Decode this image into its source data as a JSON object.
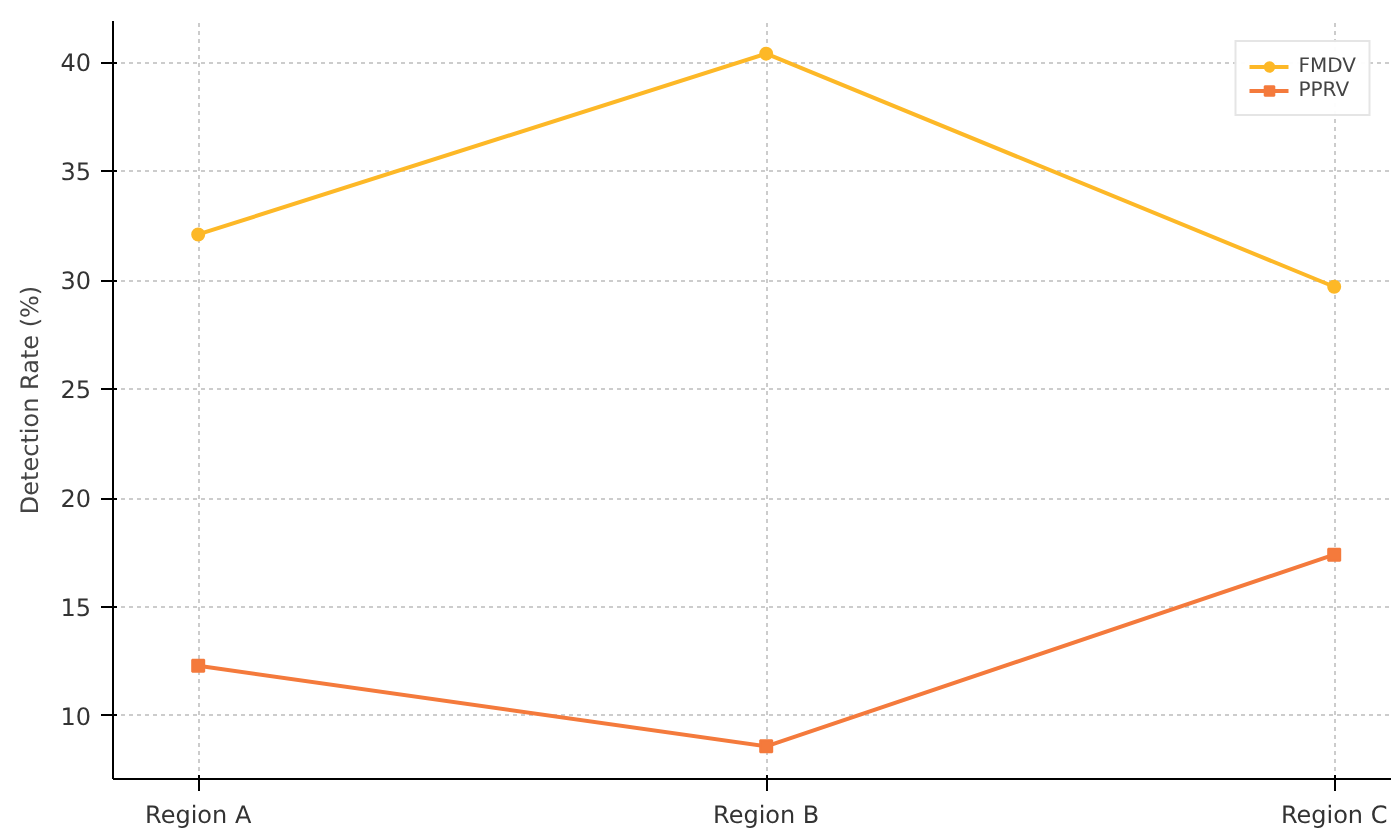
{
  "chart_data": {
    "type": "line",
    "ylabel": "Detection Rate (%)",
    "categories": [
      "Region A",
      "Region B",
      "Region C"
    ],
    "series": [
      {
        "name": "FMDV",
        "color": "#fdb827",
        "values": [
          32.1,
          40.4,
          29.7
        ],
        "marker": "circle"
      },
      {
        "name": "PPRV",
        "color": "#f47a3c",
        "values": [
          12.3,
          8.6,
          17.4
        ],
        "marker": "square"
      }
    ],
    "ylim": [
      7.1,
      41.9
    ],
    "yticks": [
      10,
      15,
      20,
      25,
      30,
      35,
      40
    ],
    "grid": true,
    "legend": "top right",
    "line_style": "solid"
  }
}
